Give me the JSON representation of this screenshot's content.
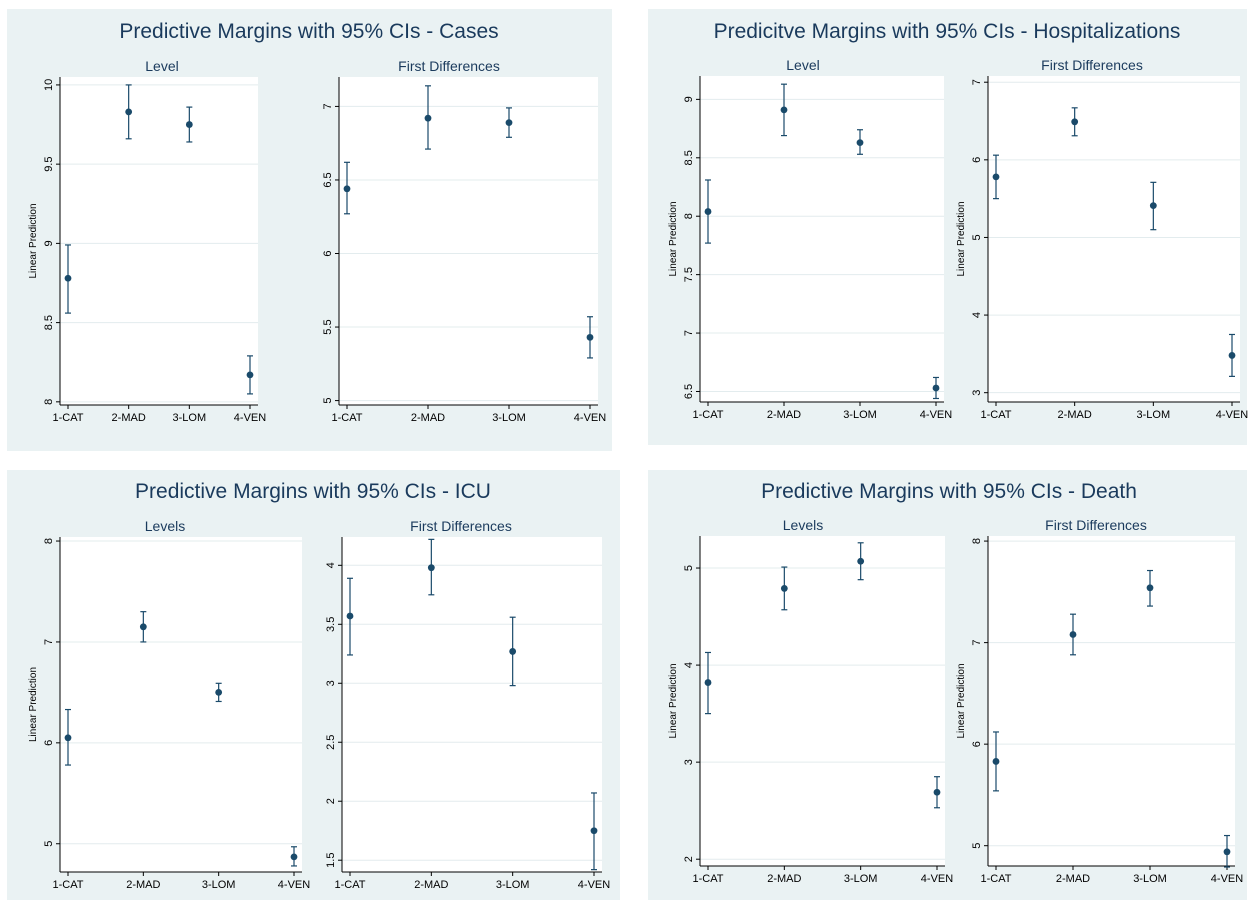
{
  "colors": {
    "panel_bg": "#eaf2f3",
    "marker": "#1a4a6a",
    "title": "#1a3a5c"
  },
  "chart_data": [
    {
      "title": "Predictive Margins with 95% CIs - Cases",
      "subplots": [
        {
          "type": "scatter",
          "title": "Level",
          "ylabel": "Linear Prediction",
          "categories": [
            "1-CAT",
            "2-MAD",
            "3-LOM",
            "4-VEN"
          ],
          "values": [
            8.78,
            9.83,
            9.75,
            8.17
          ],
          "ci_low": [
            8.56,
            9.66,
            9.64,
            8.05
          ],
          "ci_high": [
            8.99,
            10.0,
            9.86,
            8.29
          ],
          "ylim": [
            7.98,
            10.05
          ],
          "yticks": [
            8,
            8.5,
            9,
            9.5,
            10
          ],
          "ytick_labels": [
            "8",
            "8.5",
            "9",
            "9.5",
            "10"
          ]
        },
        {
          "type": "scatter",
          "title": "First Differences",
          "ylabel": "",
          "categories": [
            "1-CAT",
            "2-MAD",
            "3-LOM",
            "4-VEN"
          ],
          "values": [
            6.44,
            6.92,
            6.89,
            5.43
          ],
          "ci_low": [
            6.27,
            6.71,
            6.79,
            5.29
          ],
          "ci_high": [
            6.62,
            7.14,
            6.99,
            5.57
          ],
          "ylim": [
            4.97,
            7.2
          ],
          "yticks": [
            5,
            5.5,
            6,
            6.5,
            7
          ],
          "ytick_labels": [
            "5",
            "5.5",
            "6",
            "6.5",
            "7"
          ]
        }
      ]
    },
    {
      "title": "Predicitve Margins with 95% CIs - Hospitalizations",
      "subplots": [
        {
          "type": "scatter",
          "title": "Level",
          "ylabel": "Linear Prediction",
          "categories": [
            "1-CAT",
            "2-MAD",
            "3-LOM",
            "4-VEN"
          ],
          "values": [
            8.04,
            8.91,
            8.63,
            6.53
          ],
          "ci_low": [
            7.77,
            8.69,
            8.53,
            6.44
          ],
          "ci_high": [
            8.31,
            9.13,
            8.74,
            6.62
          ],
          "ylim": [
            6.41,
            9.2
          ],
          "yticks": [
            6.5,
            7,
            7.5,
            8,
            8.5,
            9
          ],
          "ytick_labels": [
            "6.5",
            "7",
            "7.5",
            "8",
            "8.5",
            "9"
          ]
        },
        {
          "type": "scatter",
          "title": "First Differences",
          "ylabel": "Linear Prediction",
          "categories": [
            "1-CAT",
            "2-MAD",
            "3-LOM",
            "4-VEN"
          ],
          "values": [
            5.78,
            6.49,
            5.41,
            3.48
          ],
          "ci_low": [
            5.5,
            6.31,
            5.1,
            3.21
          ],
          "ci_high": [
            6.06,
            6.67,
            5.71,
            3.75
          ],
          "ylim": [
            2.88,
            7.08
          ],
          "yticks": [
            3,
            4,
            5,
            6,
            7
          ],
          "ytick_labels": [
            "3",
            "4",
            "5",
            "6",
            "7"
          ]
        }
      ]
    },
    {
      "title": "Predictive Margins with 95% CIs - ICU",
      "subplots": [
        {
          "type": "scatter",
          "title": "Levels",
          "ylabel": "Linear Prediction",
          "categories": [
            "1-CAT",
            "2-MAD",
            "3-LOM",
            "4-VEN"
          ],
          "values": [
            6.05,
            7.15,
            6.5,
            4.87
          ],
          "ci_low": [
            5.78,
            7.0,
            6.41,
            4.78
          ],
          "ci_high": [
            6.33,
            7.3,
            6.59,
            4.97
          ],
          "ylim": [
            4.72,
            8.04
          ],
          "yticks": [
            5,
            6,
            7,
            8
          ],
          "ytick_labels": [
            "5",
            "6",
            "7",
            "8"
          ]
        },
        {
          "type": "scatter",
          "title": "First Differences",
          "ylabel": "",
          "categories": [
            "1-CAT",
            "2-MAD",
            "3-LOM",
            "4-VEN"
          ],
          "values": [
            3.57,
            3.98,
            3.27,
            1.75
          ],
          "ci_low": [
            3.24,
            3.75,
            2.98,
            1.42
          ],
          "ci_high": [
            3.89,
            4.22,
            3.56,
            2.07
          ],
          "ylim": [
            1.4,
            4.24
          ],
          "yticks": [
            1.5,
            2,
            2.5,
            3,
            3.5,
            4
          ],
          "ytick_labels": [
            "1.5",
            "2",
            "2.5",
            "3",
            "3.5",
            "4"
          ]
        }
      ]
    },
    {
      "title": "Predictive Margins with 95% CIs - Death",
      "subplots": [
        {
          "type": "scatter",
          "title": "Levels",
          "ylabel": "Linear Prediction",
          "categories": [
            "1-CAT",
            "2-MAD",
            "3-LOM",
            "4-VEN"
          ],
          "values": [
            3.82,
            4.79,
            5.07,
            2.69
          ],
          "ci_low": [
            3.5,
            4.57,
            4.88,
            2.53
          ],
          "ci_high": [
            4.13,
            5.01,
            5.26,
            2.85
          ],
          "ylim": [
            1.93,
            5.33
          ],
          "yticks": [
            2,
            3,
            4,
            5
          ],
          "ytick_labels": [
            "2",
            "3",
            "4",
            "5"
          ]
        },
        {
          "type": "scatter",
          "title": "First Differences",
          "ylabel": "Linear Prediction",
          "categories": [
            "1-CAT",
            "2-MAD",
            "3-LOM",
            "4-VEN"
          ],
          "values": [
            5.83,
            7.08,
            7.54,
            4.94
          ],
          "ci_low": [
            5.54,
            6.88,
            7.36,
            4.79
          ],
          "ci_high": [
            6.12,
            7.28,
            7.71,
            5.1
          ],
          "ylim": [
            4.8,
            8.05
          ],
          "yticks": [
            5,
            6,
            7,
            8
          ],
          "ytick_labels": [
            "5",
            "6",
            "7",
            "8"
          ]
        }
      ]
    }
  ]
}
